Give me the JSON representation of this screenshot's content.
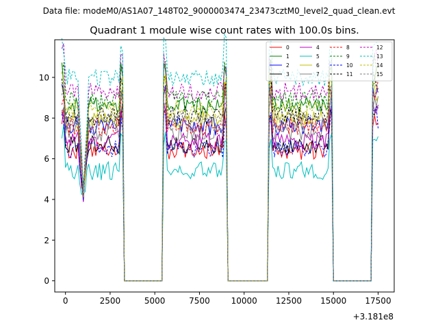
{
  "chart_data": {
    "type": "line",
    "suptitle": "Data file: modeM0/AS1A07_148T02_9000003474_23473cztM0_level2_quad_clean.evt",
    "title": "Quadrant 1 module wise count rates with 100.0s bins.",
    "xlabel": "",
    "ylabel": "",
    "x_offset_label": "+3.181e8",
    "xlim": [
      -600,
      18400
    ],
    "ylim": [
      -0.55,
      11.85
    ],
    "x_ticks": [
      0,
      2500,
      5000,
      7500,
      10000,
      12500,
      15000,
      17500
    ],
    "x_tick_labels": [
      "0",
      "2500",
      "5000",
      "7500",
      "10000",
      "12500",
      "15000",
      "17500"
    ],
    "y_ticks": [
      0,
      2,
      4,
      6,
      8,
      10
    ],
    "y_tick_labels": [
      "0",
      "2",
      "4",
      "6",
      "8",
      "10"
    ],
    "legend_position": "top-right",
    "legend_columns": 4,
    "on_intervals": [
      [
        -200,
        3200
      ],
      [
        5500,
        9000
      ],
      [
        11400,
        14900
      ],
      [
        17200,
        17500
      ]
    ],
    "dip_x": 1000,
    "series": [
      {
        "name": "0",
        "color": "#ff0000",
        "dash": "solid",
        "base": 6.4
      },
      {
        "name": "1",
        "color": "#008000",
        "dash": "solid",
        "base": 8.6
      },
      {
        "name": "2",
        "color": "#0000ff",
        "dash": "solid",
        "base": 7.6
      },
      {
        "name": "3",
        "color": "#000000",
        "dash": "solid",
        "base": 6.7
      },
      {
        "name": "4",
        "color": "#bf00bf",
        "dash": "solid",
        "base": 6.9
      },
      {
        "name": "5",
        "color": "#00bfbf",
        "dash": "solid",
        "base": 5.4
      },
      {
        "name": "6",
        "color": "#bfbf00",
        "dash": "solid",
        "base": 7.9
      },
      {
        "name": "7",
        "color": "#808080",
        "dash": "solid",
        "base": 7.3
      },
      {
        "name": "8",
        "color": "#ff0000",
        "dash": "dashed",
        "base": 7.6
      },
      {
        "name": "9",
        "color": "#008000",
        "dash": "dashed",
        "base": 8.9
      },
      {
        "name": "10",
        "color": "#0000ff",
        "dash": "dashed",
        "base": 6.5
      },
      {
        "name": "11",
        "color": "#000000",
        "dash": "dashed",
        "base": 8.1
      },
      {
        "name": "12",
        "color": "#bf00bf",
        "dash": "dashed",
        "base": 9.3
      },
      {
        "name": "13",
        "color": "#00bfbf",
        "dash": "dashed",
        "base": 10.0
      },
      {
        "name": "14",
        "color": "#bfbf00",
        "dash": "dashed",
        "base": 8.4
      },
      {
        "name": "15",
        "color": "#808080",
        "dash": "dashed",
        "base": 7.8
      }
    ]
  }
}
